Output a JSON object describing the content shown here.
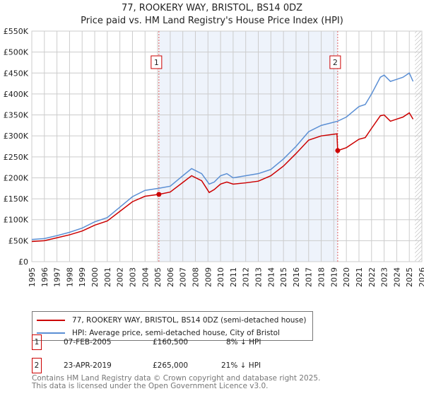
{
  "chart_data": {
    "type": "line",
    "title": "77, ROOKERY WAY, BRISTOL, BS14 0DZ",
    "subtitle": "Price paid vs. HM Land Registry's House Price Index (HPI)",
    "xlim": [
      1995,
      2026
    ],
    "ylim": [
      0,
      550000
    ],
    "x_ticks": [
      "1995",
      "1996",
      "1997",
      "1998",
      "1999",
      "2000",
      "2001",
      "2002",
      "2003",
      "2004",
      "2005",
      "2006",
      "2007",
      "2008",
      "2009",
      "2010",
      "2011",
      "2012",
      "2013",
      "2014",
      "2015",
      "2016",
      "2017",
      "2018",
      "2019",
      "2020",
      "2021",
      "2022",
      "2023",
      "2024",
      "2025",
      "2026"
    ],
    "y_ticks": [
      {
        "v": 0,
        "label": "£0"
      },
      {
        "v": 50000,
        "label": "£50K"
      },
      {
        "v": 100000,
        "label": "£100K"
      },
      {
        "v": 150000,
        "label": "£150K"
      },
      {
        "v": 200000,
        "label": "£200K"
      },
      {
        "v": 250000,
        "label": "£250K"
      },
      {
        "v": 300000,
        "label": "£300K"
      },
      {
        "v": 350000,
        "label": "£350K"
      },
      {
        "v": 400000,
        "label": "£400K"
      },
      {
        "v": 450000,
        "label": "£450K"
      },
      {
        "v": 500000,
        "label": "£500K"
      },
      {
        "v": 550000,
        "label": "£550K"
      }
    ],
    "grid": true,
    "shaded_range": [
      2005.1,
      2019.31
    ],
    "forecast_hatch_from": 2025.45,
    "series": [
      {
        "name": "77, ROOKERY WAY, BRISTOL, BS14 0DZ (semi-detached house)",
        "color": "#cc0000",
        "x": [
          1995,
          1996,
          1997,
          1998,
          1999,
          2000,
          2001,
          2002,
          2003,
          2004,
          2005.1,
          2006,
          2007,
          2007.7,
          2008.5,
          2009.1,
          2009.5,
          2010,
          2010.5,
          2011,
          2012,
          2013,
          2014,
          2015,
          2016,
          2017,
          2018,
          2019.25,
          2019.31,
          2020,
          2021,
          2021.5,
          2022,
          2022.7,
          2023,
          2023.5,
          2024,
          2024.5,
          2025,
          2025.3
        ],
        "y": [
          48000,
          50000,
          57000,
          64000,
          73000,
          87000,
          97000,
          120000,
          143000,
          156000,
          160500,
          166000,
          189000,
          205000,
          193000,
          165000,
          172000,
          185000,
          190000,
          185000,
          188000,
          192000,
          205000,
          228000,
          258000,
          290000,
          300000,
          305000,
          265000,
          272000,
          292000,
          296000,
          318000,
          348000,
          350000,
          335000,
          340000,
          345000,
          355000,
          340000
        ]
      },
      {
        "name": "HPI: Average price, semi-detached house, City of Bristol",
        "color": "#5b8fd4",
        "x": [
          1995,
          1996,
          1997,
          1998,
          1999,
          2000,
          2001,
          2002,
          2003,
          2004,
          2005.1,
          2006,
          2007,
          2007.7,
          2008.5,
          2009.1,
          2009.5,
          2010,
          2010.5,
          2011,
          2012,
          2013,
          2014,
          2015,
          2016,
          2017,
          2018,
          2019.3,
          2020,
          2021,
          2021.5,
          2022,
          2022.7,
          2023,
          2023.5,
          2024,
          2024.5,
          2025,
          2025.3
        ],
        "y": [
          53000,
          55000,
          62000,
          70000,
          80000,
          95000,
          105000,
          130000,
          155000,
          170000,
          175000,
          180000,
          205000,
          222000,
          210000,
          185000,
          190000,
          205000,
          210000,
          200000,
          205000,
          210000,
          220000,
          245000,
          275000,
          310000,
          325000,
          335000,
          345000,
          370000,
          375000,
          400000,
          440000,
          445000,
          430000,
          435000,
          440000,
          450000,
          430000
        ]
      }
    ],
    "annotations": [
      {
        "label": "1",
        "date": "07-FEB-2005",
        "x": 2005.1,
        "price": "£160,500",
        "value": 160500,
        "hpi": "8% ↓ HPI"
      },
      {
        "label": "2",
        "date": "23-APR-2019",
        "x": 2019.31,
        "price": "£265,000",
        "value": 265000,
        "hpi": "21% ↓ HPI"
      }
    ]
  },
  "footer": {
    "line1": "Contains HM Land Registry data © Crown copyright and database right 2025.",
    "line2": "This data is licensed under the Open Government Licence v3.0."
  }
}
